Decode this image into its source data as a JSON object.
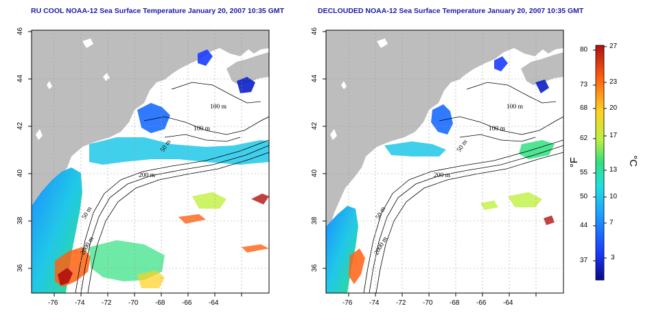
{
  "titles": {
    "left": "RU COOL NOAA-12 Sea Surface Temperature January 20, 2007 10:35 GMT",
    "right": "DECLOUDED NOAA-12 Sea Surface Temperature January 20, 2007 10:35 GMT"
  },
  "axes": {
    "lon_ticks": [
      "-76",
      "-74",
      "-72",
      "-70",
      "-68",
      "-66",
      "-64"
    ],
    "lat_ticks": [
      "46",
      "44",
      "42",
      "40",
      "38",
      "36"
    ]
  },
  "contour_labels": [
    "100 m",
    "100 m",
    "50 m",
    "200 m",
    "50 m",
    "2000 m"
  ],
  "colorbar": {
    "fahrenheit_label": "°F",
    "celsius_label": "°C",
    "fahrenheit_ticks": [
      "80",
      "73",
      "68",
      "62",
      "55",
      "50",
      "44",
      "37"
    ],
    "celsius_ticks": [
      "27",
      "23",
      "20",
      "17",
      "13",
      "10",
      "7",
      "3"
    ],
    "colors": [
      "#08088a",
      "#1a3cff",
      "#1aa0ff",
      "#20e0e0",
      "#30e080",
      "#c0f040",
      "#ffd020",
      "#ff6010",
      "#b01010"
    ]
  },
  "map_colors": {
    "land": "#bdbdbd",
    "lakes": "#ffffff",
    "contour": "#000000",
    "grid": "#9a9a9a"
  }
}
